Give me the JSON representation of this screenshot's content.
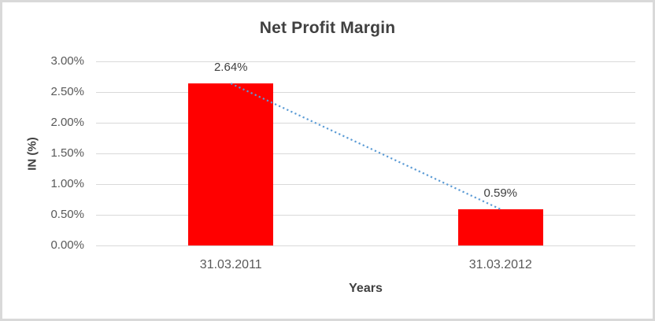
{
  "chart": {
    "title": "Net Profit Margin",
    "y_axis_title": "IN (%)",
    "x_axis_title": "Years",
    "colors": {
      "bar": "#FF0000",
      "trendline": "#5B9BD5",
      "gridline": "#D9D9D9",
      "frame_border": "#D9D9D9",
      "title_text": "#404040",
      "tick_text": "#595959"
    }
  },
  "chart_data": {
    "type": "bar",
    "title": "Net Profit Margin",
    "xlabel": "Years",
    "ylabel": "IN (%)",
    "categories": [
      "31.03.2011",
      "31.03.2012"
    ],
    "values": [
      2.64,
      0.59
    ],
    "data_labels": [
      "2.64%",
      "0.59%"
    ],
    "y_ticks": [
      "0.00%",
      "0.50%",
      "1.00%",
      "1.50%",
      "2.00%",
      "2.50%",
      "3.00%"
    ],
    "y_tick_values": [
      0,
      0.5,
      1.0,
      1.5,
      2.0,
      2.5,
      3.0
    ],
    "ylim": [
      0,
      3
    ],
    "grid": true,
    "legend_position": "none",
    "bar_color": "#FF0000",
    "trendline": {
      "type": "linear",
      "style": "dotted",
      "color": "#5B9BD5",
      "from_value": 2.64,
      "to_value": 0.59
    }
  }
}
